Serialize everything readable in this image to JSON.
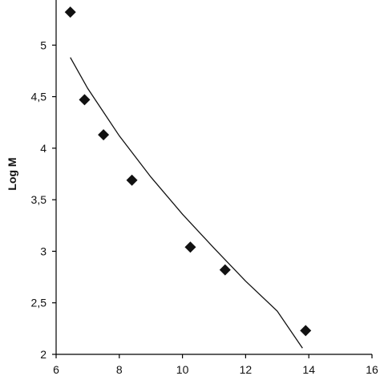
{
  "chart_data": {
    "type": "scatter",
    "title": "",
    "xlabel": "",
    "ylabel": "Log M",
    "xlim": [
      6,
      16
    ],
    "ylim": [
      2,
      5.5
    ],
    "x_ticks": [
      6,
      8,
      10,
      12,
      14,
      16
    ],
    "y_ticks": [
      2,
      2.5,
      3,
      3.5,
      4,
      4.5,
      5
    ],
    "x_tick_labels": [
      "6",
      "8",
      "10",
      "12",
      "14",
      "16"
    ],
    "y_tick_labels": [
      "2",
      "2,5",
      "3",
      "3,5",
      "4",
      "4,5",
      "5"
    ],
    "grid": false,
    "legend": "none",
    "marker": "diamond",
    "series": [
      {
        "values": [
          {
            "x": 6.45,
            "y": 5.32
          },
          {
            "x": 6.9,
            "y": 4.47
          },
          {
            "x": 7.5,
            "y": 4.13
          },
          {
            "x": 8.4,
            "y": 3.69
          },
          {
            "x": 10.25,
            "y": 3.04
          },
          {
            "x": 11.35,
            "y": 2.82
          },
          {
            "x": 13.9,
            "y": 2.23
          }
        ]
      }
    ],
    "trendline": {
      "type": "curve",
      "points": [
        {
          "x": 6.45,
          "y": 4.88
        },
        {
          "x": 7.0,
          "y": 4.58
        },
        {
          "x": 8.0,
          "y": 4.12
        },
        {
          "x": 9.0,
          "y": 3.72
        },
        {
          "x": 10.0,
          "y": 3.36
        },
        {
          "x": 11.0,
          "y": 3.03
        },
        {
          "x": 12.0,
          "y": 2.71
        },
        {
          "x": 13.0,
          "y": 2.42
        },
        {
          "x": 13.8,
          "y": 2.06
        }
      ]
    }
  }
}
